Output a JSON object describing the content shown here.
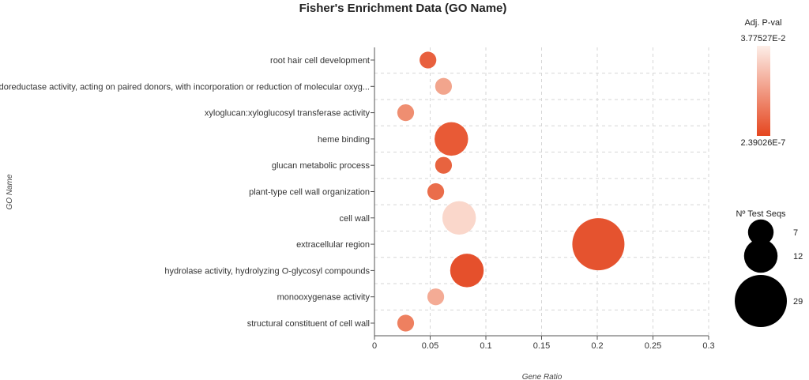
{
  "chart_data": {
    "type": "scatter",
    "title": "Fisher's Enrichment Data (GO Name)",
    "xlabel": "Gene Ratio",
    "ylabel": "GO Name",
    "xlim": [
      0,
      0.3
    ],
    "xticks": [
      0,
      0.05,
      0.1,
      0.15,
      0.2,
      0.25,
      0.3
    ],
    "xtick_labels": [
      "0",
      "0.05",
      "0.1",
      "0.15",
      "0.2",
      "0.25",
      "0.3"
    ],
    "grid": true,
    "categories": [
      "root hair cell development",
      "oxidoreductase activity, acting on paired donors, with incorporation or reduction of molecular oxyg...",
      "xyloglucan:xyloglucosyl transferase activity",
      "heme binding",
      "glucan metabolic process",
      "plant-type cell wall organization",
      "cell wall",
      "extracellular region",
      "hydrolase activity, hydrolyzing O-glycosyl compounds",
      "monooxygenase activity",
      "structural constituent of cell wall"
    ],
    "points": [
      {
        "category": "root hair cell development",
        "gene_ratio": 0.048,
        "test_seqs": 3,
        "color": "#e8603e"
      },
      {
        "category": "oxidoreductase activity, acting on paired donors, with incorporation or reduction of molecular oxyg...",
        "gene_ratio": 0.062,
        "test_seqs": 3,
        "color": "#f2a58d"
      },
      {
        "category": "xyloglucan:xyloglucosyl transferase activity",
        "gene_ratio": 0.028,
        "test_seqs": 3,
        "color": "#ef8e71"
      },
      {
        "category": "heme binding",
        "gene_ratio": 0.069,
        "test_seqs": 12,
        "color": "#e85a36"
      },
      {
        "category": "glucan metabolic process",
        "gene_ratio": 0.062,
        "test_seqs": 3,
        "color": "#e8633f"
      },
      {
        "category": "plant-type cell wall organization",
        "gene_ratio": 0.055,
        "test_seqs": 3,
        "color": "#ea6d4b"
      },
      {
        "category": "cell wall",
        "gene_ratio": 0.076,
        "test_seqs": 12,
        "color": "#fad7cb"
      },
      {
        "category": "extracellular region",
        "gene_ratio": 0.201,
        "test_seqs": 29,
        "color": "#e5532f"
      },
      {
        "category": "hydrolase activity, hydrolyzing O-glycosyl compounds",
        "gene_ratio": 0.083,
        "test_seqs": 12,
        "color": "#e5502c"
      },
      {
        "category": "monooxygenase activity",
        "gene_ratio": 0.055,
        "test_seqs": 3,
        "color": "#f4ab95"
      },
      {
        "category": "structural constituent of cell wall",
        "gene_ratio": 0.028,
        "test_seqs": 3,
        "color": "#ee8060"
      }
    ],
    "color_legend": {
      "title": "Adj. P-val",
      "max_label": "3.77527E-2",
      "min_label": "2.39026E-7",
      "color_high": "#fdeee8",
      "color_low": "#e5461f"
    },
    "size_legend": {
      "title": "Nº Test Seqs",
      "values": [
        7,
        12,
        29
      ],
      "labels": [
        "7",
        "12",
        "29"
      ]
    }
  }
}
